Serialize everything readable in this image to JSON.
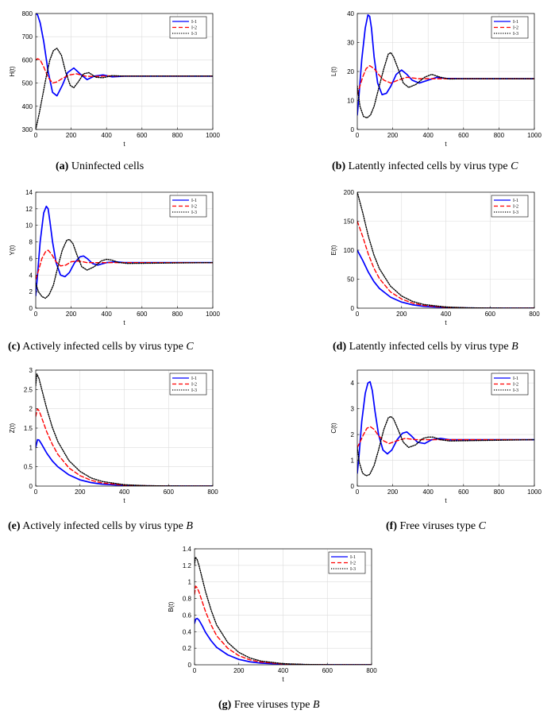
{
  "figure": {
    "legend_labels": [
      "I-1",
      "I-2",
      "I-3"
    ],
    "series_styles": [
      {
        "name": "I-1",
        "color": "#0000ff",
        "dash": "solid"
      },
      {
        "name": "I-2",
        "color": "#ff0000",
        "dash": "dashed"
      },
      {
        "name": "I-3",
        "color": "#000000",
        "dash": "dotted"
      }
    ]
  },
  "chart_data": [
    {
      "id": "a",
      "type": "line",
      "caption_label": "(a)",
      "caption_text": "Uninfected cells",
      "caption_var": "",
      "xlabel": "t",
      "ylabel": "H(t)",
      "xlim": [
        0,
        1000
      ],
      "ylim": [
        300,
        800
      ],
      "xticks": [
        0,
        200,
        400,
        600,
        800,
        1000
      ],
      "yticks": [
        300,
        400,
        500,
        600,
        700,
        800
      ],
      "grid": true,
      "legend": "top-right",
      "series": [
        {
          "name": "I-1",
          "x": [
            0,
            10,
            25,
            45,
            70,
            95,
            120,
            150,
            180,
            215,
            250,
            290,
            330,
            380,
            430,
            500,
            600,
            800,
            1000
          ],
          "y": [
            800,
            795,
            760,
            680,
            550,
            460,
            445,
            490,
            545,
            565,
            540,
            515,
            530,
            535,
            527,
            530,
            530,
            530,
            530
          ]
        },
        {
          "name": "I-2",
          "x": [
            0,
            10,
            25,
            45,
            70,
            95,
            120,
            150,
            190,
            230,
            280,
            330,
            400,
            500,
            1000
          ],
          "y": [
            600,
            605,
            600,
            570,
            525,
            500,
            505,
            520,
            535,
            540,
            530,
            528,
            531,
            530,
            530
          ]
        },
        {
          "name": "I-3",
          "x": [
            0,
            20,
            40,
            60,
            80,
            100,
            120,
            145,
            170,
            195,
            215,
            240,
            270,
            300,
            340,
            380,
            430,
            500,
            1000
          ],
          "y": [
            300,
            370,
            450,
            530,
            600,
            640,
            650,
            620,
            545,
            490,
            480,
            505,
            540,
            545,
            525,
            523,
            532,
            530,
            530
          ]
        }
      ]
    },
    {
      "id": "b",
      "type": "line",
      "caption_label": "(b)",
      "caption_text": "Latently infected cells by virus type ",
      "caption_var": "C",
      "xlabel": "t",
      "ylabel": "L(t)",
      "xlim": [
        0,
        1000
      ],
      "ylim": [
        0,
        40
      ],
      "xticks": [
        0,
        200,
        400,
        600,
        800,
        1000
      ],
      "yticks": [
        0,
        10,
        20,
        30,
        40
      ],
      "grid": true,
      "legend": "top-right",
      "series": [
        {
          "name": "I-1",
          "x": [
            0,
            10,
            25,
            45,
            60,
            70,
            80,
            95,
            115,
            140,
            165,
            190,
            220,
            250,
            280,
            310,
            350,
            400,
            450,
            500,
            600,
            1000
          ],
          "y": [
            5,
            12,
            24,
            35,
            39.5,
            39,
            35,
            25,
            16,
            12,
            12.5,
            15,
            19,
            20.5,
            19,
            17,
            16,
            17,
            18,
            17.6,
            17.5,
            17.5
          ]
        },
        {
          "name": "I-2",
          "x": [
            0,
            10,
            30,
            50,
            70,
            95,
            120,
            150,
            190,
            230,
            280,
            350,
            450,
            1000
          ],
          "y": [
            12,
            14,
            18,
            21,
            22,
            21,
            19,
            17,
            16,
            17,
            18,
            17.5,
            17.5,
            17.5
          ]
        },
        {
          "name": "I-3",
          "x": [
            0,
            15,
            35,
            55,
            75,
            95,
            120,
            150,
            175,
            190,
            205,
            230,
            260,
            290,
            330,
            380,
            420,
            470,
            520,
            600,
            1000
          ],
          "y": [
            15,
            8,
            4.5,
            4,
            5,
            8,
            14,
            21,
            26,
            26.5,
            25,
            21,
            16,
            14.5,
            15.5,
            18,
            19,
            18,
            17.4,
            17.5,
            17.5
          ]
        }
      ]
    },
    {
      "id": "c",
      "type": "line",
      "caption_label": "(c)",
      "caption_text": "Actively infected cells by virus type ",
      "caption_var": "C",
      "xlabel": "t",
      "ylabel": "Y(t)",
      "xlim": [
        0,
        1000
      ],
      "ylim": [
        0,
        14
      ],
      "xticks": [
        0,
        200,
        400,
        600,
        800,
        1000
      ],
      "yticks": [
        0,
        2,
        4,
        6,
        8,
        10,
        12,
        14
      ],
      "grid": true,
      "legend": "top-right",
      "series": [
        {
          "name": "I-1",
          "x": [
            0,
            10,
            25,
            45,
            60,
            70,
            80,
            95,
            115,
            140,
            165,
            190,
            220,
            250,
            270,
            290,
            320,
            350,
            400,
            450,
            500,
            1000
          ],
          "y": [
            1.5,
            4,
            8,
            11.5,
            12.3,
            12,
            10.5,
            8,
            5.5,
            4,
            3.8,
            4.3,
            5.5,
            6.2,
            6.3,
            6,
            5.4,
            5.2,
            5.5,
            5.6,
            5.5,
            5.5
          ]
        },
        {
          "name": "I-2",
          "x": [
            0,
            15,
            35,
            55,
            70,
            90,
            115,
            140,
            170,
            200,
            240,
            290,
            350,
            450,
            1000
          ],
          "y": [
            3.5,
            4.5,
            6,
            6.8,
            7,
            6.5,
            5.6,
            5.1,
            5.2,
            5.6,
            5.7,
            5.5,
            5.5,
            5.5,
            5.5
          ]
        },
        {
          "name": "I-3",
          "x": [
            0,
            15,
            35,
            55,
            75,
            100,
            125,
            150,
            175,
            190,
            210,
            235,
            260,
            290,
            330,
            370,
            400,
            430,
            470,
            520,
            1000
          ],
          "y": [
            3,
            2,
            1.4,
            1.2,
            1.6,
            2.8,
            5,
            7,
            8.2,
            8.3,
            7.8,
            6.3,
            5,
            4.6,
            5,
            5.7,
            5.9,
            5.8,
            5.5,
            5.4,
            5.5
          ]
        }
      ]
    },
    {
      "id": "d",
      "type": "line",
      "caption_label": "(d)",
      "caption_text": "Latently infected cells by virus type ",
      "caption_var": "B",
      "xlabel": "t",
      "ylabel": "E(t)",
      "xlim": [
        0,
        800
      ],
      "ylim": [
        0,
        200
      ],
      "xticks": [
        0,
        200,
        400,
        600,
        800
      ],
      "yticks": [
        0,
        50,
        100,
        150,
        200
      ],
      "grid": true,
      "legend": "top-right",
      "series": [
        {
          "name": "I-1",
          "x": [
            0,
            25,
            50,
            75,
            100,
            150,
            200,
            250,
            300,
            400,
            500,
            600,
            800
          ],
          "y": [
            100,
            82,
            62,
            46,
            34,
            19,
            10.5,
            5.8,
            3.2,
            1,
            0.3,
            0.1,
            0
          ]
        },
        {
          "name": "I-2",
          "x": [
            0,
            25,
            50,
            75,
            100,
            150,
            200,
            250,
            300,
            400,
            500,
            600,
            800
          ],
          "y": [
            150,
            123,
            93,
            69,
            51,
            28,
            15.8,
            8.7,
            4.8,
            1.5,
            0.4,
            0.1,
            0
          ]
        },
        {
          "name": "I-3",
          "x": [
            0,
            25,
            50,
            75,
            100,
            150,
            200,
            250,
            300,
            400,
            500,
            600,
            800
          ],
          "y": [
            200,
            164,
            124,
            92,
            68,
            38,
            21,
            11.6,
            6.4,
            2,
            0.6,
            0.2,
            0
          ]
        }
      ]
    },
    {
      "id": "e",
      "type": "line",
      "caption_label": "(e)",
      "caption_text": "Actively infected cells by virus type ",
      "caption_var": "B",
      "xlabel": "t",
      "ylabel": "Z(t)",
      "xlim": [
        0,
        800
      ],
      "ylim": [
        0,
        3
      ],
      "xticks": [
        0,
        200,
        400,
        600,
        800
      ],
      "yticks": [
        0,
        0.5,
        1,
        1.5,
        2,
        2.5,
        3
      ],
      "grid": true,
      "legend": "top-right",
      "series": [
        {
          "name": "I-1",
          "x": [
            0,
            8,
            15,
            25,
            50,
            75,
            100,
            150,
            200,
            250,
            300,
            400,
            500,
            600,
            800
          ],
          "y": [
            1.0,
            1.2,
            1.19,
            1.1,
            0.85,
            0.65,
            0.5,
            0.29,
            0.16,
            0.09,
            0.05,
            0.015,
            0.005,
            0.001,
            0
          ]
        },
        {
          "name": "I-2",
          "x": [
            0,
            8,
            15,
            25,
            50,
            75,
            100,
            150,
            200,
            250,
            300,
            400,
            500,
            600,
            800
          ],
          "y": [
            1.8,
            2.0,
            1.95,
            1.8,
            1.4,
            1.08,
            0.82,
            0.47,
            0.27,
            0.15,
            0.08,
            0.025,
            0.008,
            0.002,
            0
          ]
        },
        {
          "name": "I-3",
          "x": [
            0,
            5,
            15,
            25,
            50,
            75,
            100,
            150,
            200,
            250,
            300,
            400,
            500,
            600,
            800
          ],
          "y": [
            2.6,
            2.9,
            2.78,
            2.55,
            2.0,
            1.52,
            1.15,
            0.66,
            0.38,
            0.21,
            0.12,
            0.035,
            0.01,
            0.003,
            0
          ]
        }
      ]
    },
    {
      "id": "f",
      "type": "line",
      "caption_label": "(f)",
      "caption_text": "Free viruses type ",
      "caption_var": "C",
      "xlabel": "t",
      "ylabel": "C(t)",
      "xlim": [
        0,
        1000
      ],
      "ylim": [
        0,
        4.5
      ],
      "xticks": [
        0,
        200,
        400,
        600,
        800,
        1000
      ],
      "yticks": [
        0,
        1,
        2,
        3,
        4
      ],
      "grid": true,
      "legend": "top-right",
      "series": [
        {
          "name": "I-1",
          "x": [
            0,
            10,
            25,
            45,
            60,
            72,
            85,
            100,
            120,
            145,
            170,
            195,
            225,
            255,
            280,
            305,
            340,
            380,
            420,
            470,
            520,
            1000
          ],
          "y": [
            0.5,
            1.2,
            2.5,
            3.6,
            4.0,
            4.05,
            3.7,
            2.9,
            2.0,
            1.4,
            1.25,
            1.4,
            1.8,
            2.05,
            2.1,
            1.95,
            1.7,
            1.65,
            1.8,
            1.85,
            1.8,
            1.8
          ]
        },
        {
          "name": "I-2",
          "x": [
            0,
            15,
            35,
            55,
            75,
            95,
            120,
            150,
            180,
            220,
            270,
            330,
            400,
            500,
            1000
          ],
          "y": [
            1.5,
            1.7,
            2.0,
            2.25,
            2.3,
            2.2,
            1.95,
            1.75,
            1.65,
            1.75,
            1.85,
            1.8,
            1.8,
            1.8,
            1.8
          ]
        },
        {
          "name": "I-3",
          "x": [
            0,
            12,
            30,
            50,
            70,
            95,
            120,
            150,
            175,
            190,
            205,
            230,
            260,
            290,
            330,
            370,
            400,
            430,
            470,
            520,
            1000
          ],
          "y": [
            1.5,
            0.9,
            0.5,
            0.4,
            0.45,
            0.8,
            1.4,
            2.2,
            2.65,
            2.7,
            2.6,
            2.2,
            1.7,
            1.5,
            1.6,
            1.85,
            1.9,
            1.9,
            1.8,
            1.75,
            1.8
          ]
        }
      ]
    },
    {
      "id": "g",
      "type": "line",
      "caption_label": "(g)",
      "caption_text": "Free viruses type ",
      "caption_var": "B",
      "xlabel": "t",
      "ylabel": "B(t)",
      "xlim": [
        0,
        800
      ],
      "ylim": [
        0,
        1.4
      ],
      "xticks": [
        0,
        200,
        400,
        600,
        800
      ],
      "yticks": [
        0,
        0.2,
        0.4,
        0.6,
        0.8,
        1,
        1.2,
        1.4
      ],
      "grid": true,
      "legend": "top-right",
      "series": [
        {
          "name": "I-1",
          "x": [
            0,
            5,
            12,
            20,
            35,
            50,
            75,
            100,
            150,
            200,
            250,
            300,
            400,
            500,
            600,
            800
          ],
          "y": [
            0.5,
            0.55,
            0.56,
            0.54,
            0.47,
            0.39,
            0.29,
            0.21,
            0.12,
            0.065,
            0.036,
            0.02,
            0.006,
            0.002,
            0.0005,
            0
          ]
        },
        {
          "name": "I-2",
          "x": [
            0,
            5,
            12,
            20,
            35,
            50,
            75,
            100,
            150,
            200,
            250,
            300,
            400,
            500,
            600,
            800
          ],
          "y": [
            0.85,
            0.95,
            0.93,
            0.88,
            0.76,
            0.64,
            0.48,
            0.35,
            0.2,
            0.11,
            0.06,
            0.033,
            0.01,
            0.003,
            0.001,
            0
          ]
        },
        {
          "name": "I-3",
          "x": [
            0,
            4,
            12,
            20,
            35,
            50,
            75,
            100,
            150,
            200,
            250,
            300,
            400,
            500,
            600,
            800
          ],
          "y": [
            1.2,
            1.3,
            1.27,
            1.2,
            1.04,
            0.88,
            0.66,
            0.48,
            0.27,
            0.15,
            0.082,
            0.045,
            0.014,
            0.004,
            0.001,
            0
          ]
        }
      ]
    }
  ]
}
